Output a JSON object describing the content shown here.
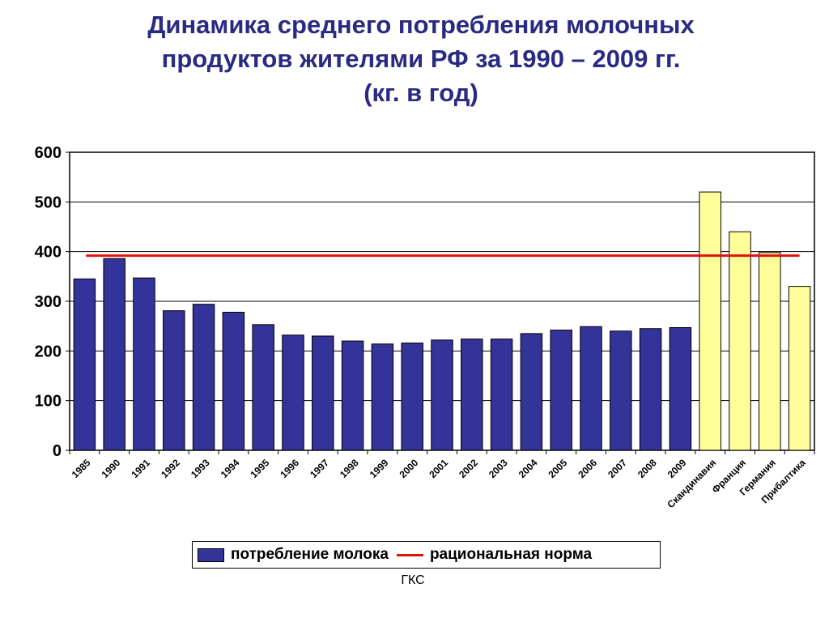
{
  "title_lines": [
    "Динамика среднего потребления молочных",
    "продуктов  жителями РФ за 1990 – 2009 гг.",
    "(кг. в год)"
  ],
  "source": "ГКС",
  "colors": {
    "title": "#2a2a82",
    "bar_primary": "#333399",
    "bar_comparison": "#ffff99",
    "norm_line": "#e01010"
  },
  "chart_data": {
    "type": "bar",
    "categories": [
      "1985",
      "1990",
      "1991",
      "1992",
      "1993",
      "1994",
      "1995",
      "1996",
      "1997",
      "1998",
      "1999",
      "2000",
      "2001",
      "2002",
      "2003",
      "2004",
      "2005",
      "2006",
      "2007",
      "2008",
      "2009",
      "Скандинавия",
      "Франция",
      "Германия",
      "Прибалтика"
    ],
    "series": [
      {
        "name": "потребление молока",
        "color": "#333399",
        "values": [
          345,
          386,
          347,
          281,
          294,
          278,
          253,
          232,
          230,
          220,
          214,
          216,
          222,
          224,
          224,
          235,
          242,
          249,
          240,
          245,
          247,
          null,
          null,
          null,
          null
        ]
      },
      {
        "name": "",
        "color": "#ffff99",
        "values": [
          null,
          null,
          null,
          null,
          null,
          null,
          null,
          null,
          null,
          null,
          null,
          null,
          null,
          null,
          null,
          null,
          null,
          null,
          null,
          null,
          null,
          520,
          440,
          398,
          330
        ]
      },
      {
        "name": "рациональная норма",
        "type": "line",
        "color": "#e01010",
        "value": 392
      }
    ],
    "yticks": [
      "0",
      "100",
      "200",
      "300",
      "400",
      "500",
      "600"
    ],
    "ylim": [
      0,
      600
    ],
    "grid": true,
    "legend_position": "bottom"
  },
  "legend": {
    "consumption": "потребление молока",
    "norm": "рациональная норма"
  }
}
